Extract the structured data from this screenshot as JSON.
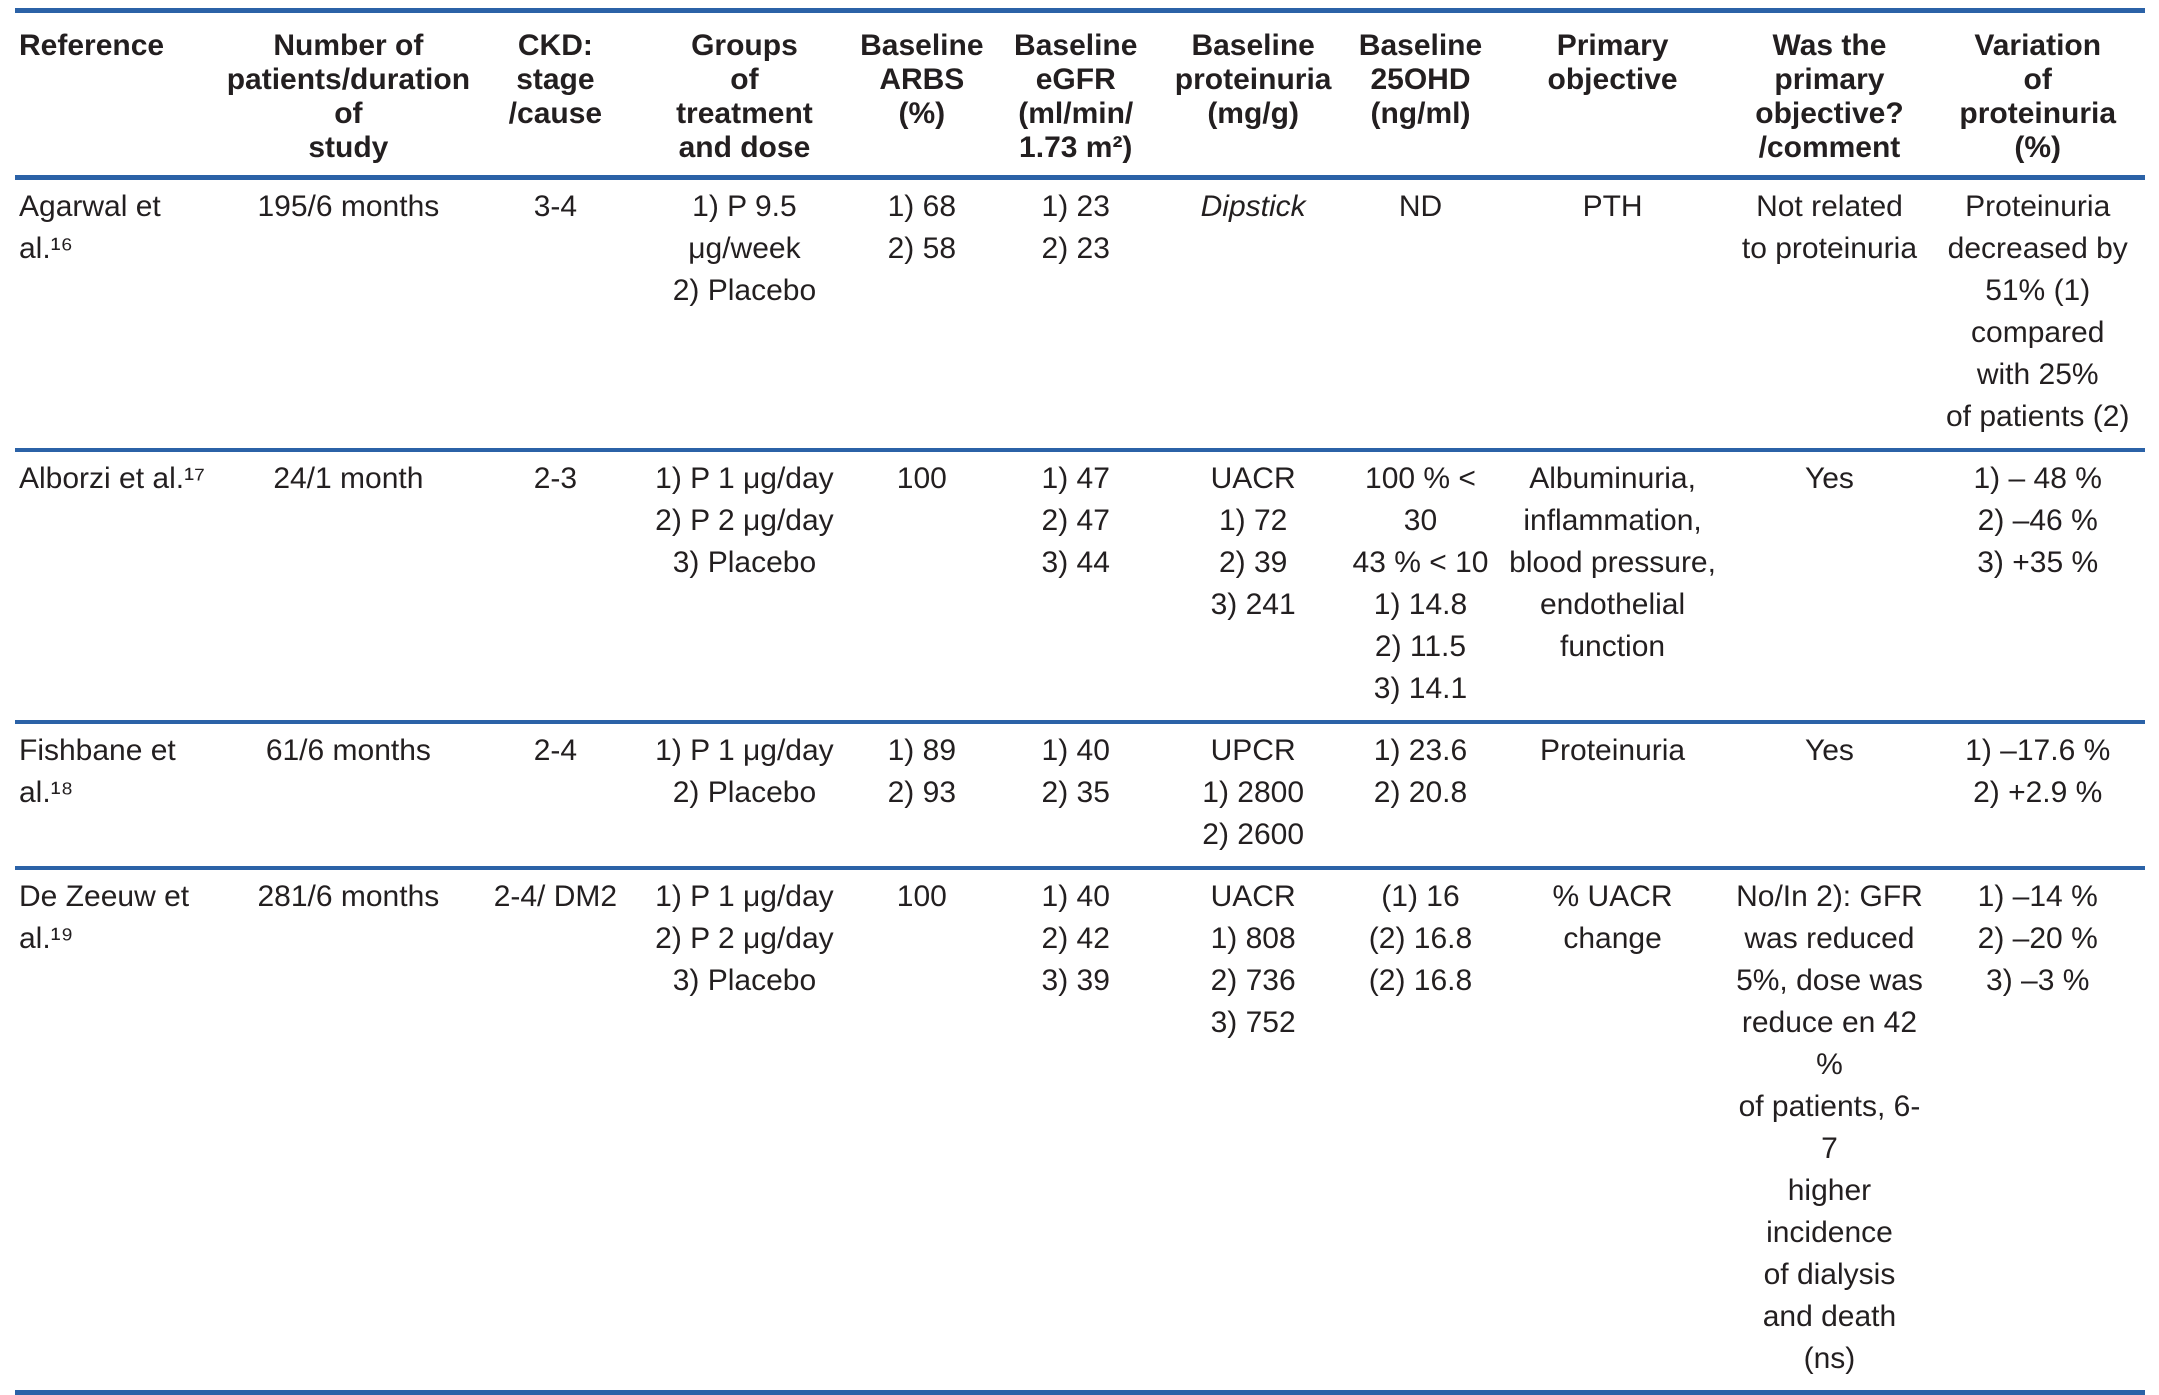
{
  "colors": {
    "rule": "#2b62a7",
    "text": "#231f20"
  },
  "table": {
    "columns": [
      {
        "id": "reference",
        "lines": [
          "Reference"
        ]
      },
      {
        "id": "patients-duration",
        "lines": [
          "Number of",
          "patients/duration",
          "of",
          "study"
        ]
      },
      {
        "id": "ckd-stage-cause",
        "lines": [
          "CKD: stage",
          "/cause"
        ]
      },
      {
        "id": "treatment-groups",
        "lines": [
          "Groups",
          "of",
          "treatment",
          "and dose"
        ]
      },
      {
        "id": "baseline-arbs",
        "lines": [
          "Baseline",
          "ARBS",
          "(%)"
        ]
      },
      {
        "id": "baseline-egfr",
        "lines": [
          "Baseline",
          "eGFR",
          "(ml/min/",
          "1.73 m²)"
        ]
      },
      {
        "id": "baseline-proteinuria",
        "lines": [
          "Baseline",
          "proteinuria",
          "(mg/g)"
        ]
      },
      {
        "id": "baseline-25ohd",
        "lines": [
          "Baseline",
          "25OHD",
          "(ng/ml)"
        ]
      },
      {
        "id": "primary-objective",
        "lines": [
          "Primary",
          "objective"
        ]
      },
      {
        "id": "primary-objective-met",
        "lines": [
          "Was the",
          "primary",
          "objective?",
          "/comment"
        ]
      },
      {
        "id": "proteinuria-variation",
        "lines": [
          "Variation",
          "of",
          "proteinuria",
          "(%)"
        ]
      }
    ],
    "rows": [
      {
        "id": "agarwal",
        "cells": [
          {
            "lines": [
              "Agarwal et al.¹⁶"
            ]
          },
          {
            "lines": [
              "195/6 months"
            ]
          },
          {
            "lines": [
              "3-4"
            ]
          },
          {
            "lines": [
              "1) P 9.5 μg/week",
              "2) Placebo"
            ]
          },
          {
            "lines": [
              "1) 68",
              "2) 58"
            ]
          },
          {
            "lines": [
              "1) 23",
              "2) 23"
            ]
          },
          {
            "lines": [
              "Dipstick"
            ],
            "italic": true
          },
          {
            "lines": [
              "ND"
            ]
          },
          {
            "lines": [
              "PTH"
            ]
          },
          {
            "lines": [
              "Not related",
              "to proteinuria"
            ]
          },
          {
            "lines": [
              "Proteinuria",
              "decreased by",
              "51% (1)",
              "compared",
              "with 25%",
              "of patients (2)"
            ]
          }
        ]
      },
      {
        "id": "alborzi",
        "cells": [
          {
            "lines": [
              "Alborzi et al.¹⁷"
            ]
          },
          {
            "lines": [
              "24/1 month"
            ]
          },
          {
            "lines": [
              "2-3"
            ]
          },
          {
            "lines": [
              "1) P 1 μg/day",
              "2) P 2 μg/day",
              "3) Placebo"
            ]
          },
          {
            "lines": [
              "100"
            ]
          },
          {
            "lines": [
              "1) 47",
              "2) 47",
              "3) 44"
            ]
          },
          {
            "lines": [
              "UACR",
              "1) 72",
              "2) 39",
              "3) 241"
            ]
          },
          {
            "lines": [
              "100 % < 30",
              "43 % < 10",
              "1) 14.8",
              "2) 11.5",
              "3) 14.1"
            ]
          },
          {
            "lines": [
              "Albuminuria,",
              "inflammation,",
              "blood pressure,",
              "endothelial",
              "function"
            ]
          },
          {
            "lines": [
              "Yes"
            ]
          },
          {
            "lines": [
              "1) – 48 %",
              "2) –46 %",
              "3) +35 %"
            ]
          }
        ]
      },
      {
        "id": "fishbane",
        "cells": [
          {
            "lines": [
              "Fishbane et al.¹⁸"
            ]
          },
          {
            "lines": [
              "61/6 months"
            ]
          },
          {
            "lines": [
              "2-4"
            ]
          },
          {
            "lines": [
              "1) P 1 μg/day",
              "2) Placebo"
            ]
          },
          {
            "lines": [
              "1) 89",
              "2) 93"
            ]
          },
          {
            "lines": [
              "1) 40",
              "2) 35"
            ]
          },
          {
            "lines": [
              "UPCR",
              "1) 2800",
              "2) 2600"
            ]
          },
          {
            "lines": [
              "1) 23.6",
              "2) 20.8"
            ]
          },
          {
            "lines": [
              "Proteinuria"
            ]
          },
          {
            "lines": [
              "Yes"
            ]
          },
          {
            "lines": [
              "1) –17.6 %",
              "2) +2.9 %"
            ]
          }
        ]
      },
      {
        "id": "de-zeeuw",
        "cells": [
          {
            "lines": [
              "De Zeeuw et al.¹⁹"
            ]
          },
          {
            "lines": [
              "281/6 months"
            ]
          },
          {
            "lines": [
              "2-4/ DM2"
            ]
          },
          {
            "lines": [
              "1) P 1 μg/day",
              "2) P 2 μg/day",
              "3) Placebo"
            ]
          },
          {
            "lines": [
              "100"
            ]
          },
          {
            "lines": [
              "1) 40",
              "2) 42",
              "3) 39"
            ]
          },
          {
            "lines": [
              "UACR",
              "1) 808",
              "2) 736",
              "3) 752"
            ]
          },
          {
            "lines": [
              "(1) 16",
              "(2) 16.8",
              "(2) 16.8"
            ]
          },
          {
            "lines": [
              "% UACR",
              "change"
            ]
          },
          {
            "lines": [
              "No/In 2): GFR",
              "was reduced",
              "5%, dose was",
              "reduce en 42 %",
              "of patients, 6-7",
              "higher incidence",
              "of dialysis",
              "and death (ns)"
            ]
          },
          {
            "lines": [
              "1) –14 %",
              "2) –20 %",
              "3) –3 %"
            ]
          }
        ]
      }
    ]
  }
}
